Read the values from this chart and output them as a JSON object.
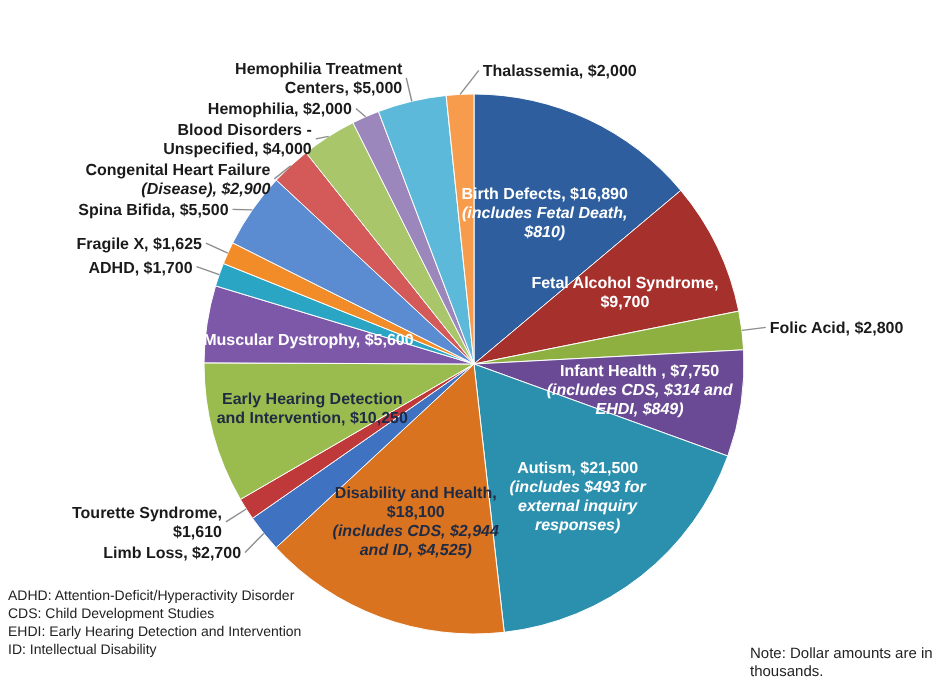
{
  "chart_data": {
    "type": "pie",
    "categories": [
      "Birth Defects, $16,890 (includes Fetal Death, $810)",
      "Fetal Alcohol Syndrome, $9,700",
      "Folic Acid, $2,800",
      "Infant Health , $7,750 (includes CDS, $314 and EHDI, $849)",
      "Autism, $21,500 (includes $493 for external inquiry responses)",
      "Disability and Health, $18,100 (includes CDS, $2,944 and ID, $4,525)",
      "Limb Loss, $2,700",
      "Tourette Syndrome, $1,610",
      "Early Hearing Detection and Intervention, $10,250",
      "Muscular Dystrophy, $5,600",
      "ADHD, $1,700",
      "Fragile X, $1,625",
      "Spina Bifida, $5,500",
      "Congenital Heart Failure (Disease), $2,900",
      "Blood Disorders - Unspecified, $4,000",
      "Hemophilia, $2,000",
      "Hemophilia Treatment Centers, $5,000",
      "Thalassemia, $2,000"
    ],
    "values": [
      16890,
      9700,
      2800,
      7750,
      21500,
      18100,
      2700,
      1610,
      10250,
      5600,
      1700,
      1625,
      5500,
      2900,
      4000,
      2000,
      5000,
      2000
    ],
    "colors": [
      "#2e5e9e",
      "#a5302c",
      "#8db040",
      "#6a4a94",
      "#2b8fae",
      "#d9731f",
      "#3f72c0",
      "#c0393a",
      "#9abb4e",
      "#7d58a8",
      "#2aa5c4",
      "#f28c28",
      "#5b8bd0",
      "#d45a5a",
      "#a9c66a",
      "#9c87bd",
      "#5cb9da",
      "#f79b4d"
    ],
    "annotations": [
      "ADHD: Attention-Deficit/Hyperactivity Disorder",
      "CDS: Child Development Studies",
      "EHDI: Early Hearing Detection and Intervention",
      "ID: Intellectual Disability",
      "Note: Dollar amounts are in thousands."
    ]
  }
}
